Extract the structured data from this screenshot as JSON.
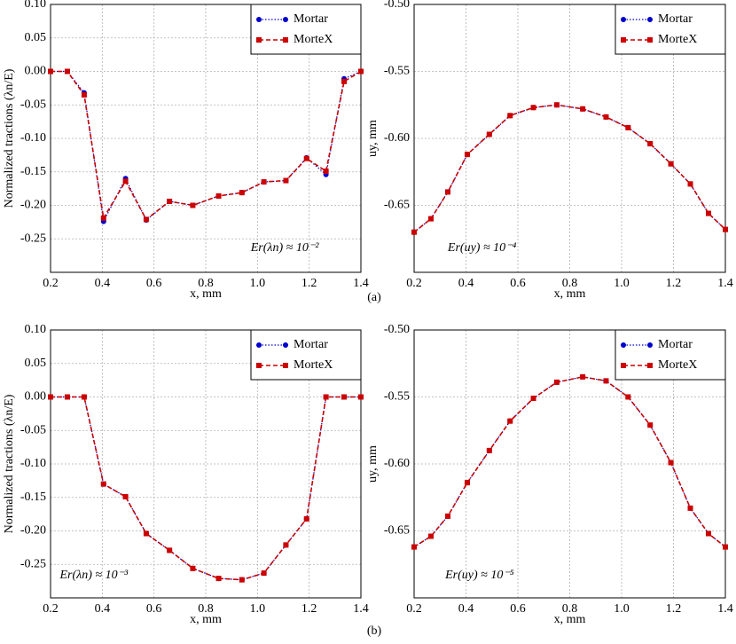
{
  "chart_data": [
    {
      "type": "line",
      "xlabel": "x, mm",
      "ylabel": "Normalized tractions (λn/E)",
      "annotation": "Er(λn) ≈ 10⁻²",
      "x": [
        0.2,
        0.265,
        0.33,
        0.405,
        0.49,
        0.57,
        0.66,
        0.75,
        0.85,
        0.94,
        1.025,
        1.11,
        1.19,
        1.265,
        1.335,
        1.4
      ],
      "series": [
        {
          "name": "Mortar",
          "color": "#0000cc",
          "values": [
            0,
            0,
            -0.032,
            -0.224,
            -0.16,
            -0.222,
            -0.194,
            -0.2,
            -0.186,
            -0.181,
            -0.165,
            -0.163,
            -0.129,
            -0.154,
            -0.011,
            0
          ]
        },
        {
          "name": "MorteX",
          "color": "#cc0000",
          "values": [
            0,
            0,
            -0.035,
            -0.219,
            -0.164,
            -0.221,
            -0.194,
            -0.2,
            -0.186,
            -0.181,
            -0.165,
            -0.163,
            -0.13,
            -0.149,
            -0.015,
            0
          ]
        }
      ],
      "xlim": [
        0.2,
        1.4
      ],
      "xticks": [
        0.2,
        0.4,
        0.6,
        0.8,
        {
          "value": 1,
          "label": "1.0"
        },
        1.2,
        1.4
      ],
      "ylim": [
        -0.3,
        0.1
      ],
      "yticks": [
        {
          "value": 0.1,
          "label": "0.10"
        },
        {
          "value": 0.05,
          "label": "0.05"
        },
        {
          "value": 0,
          "label": "0.00"
        },
        {
          "value": -0.05,
          "label": "-0.05"
        },
        {
          "value": -0.1,
          "label": "-0.10"
        },
        {
          "value": -0.15,
          "label": "-0.15"
        },
        {
          "value": -0.2,
          "label": "-0.20"
        },
        {
          "value": -0.25,
          "label": "-0.25"
        }
      ],
      "grid": true,
      "legend": "upper right"
    },
    {
      "type": "line",
      "xlabel": "x, mm",
      "ylabel": "uy, mm",
      "annotation": "Er(uy) ≈ 10⁻⁴",
      "x": [
        0.2,
        0.265,
        0.33,
        0.405,
        0.49,
        0.57,
        0.66,
        0.75,
        0.85,
        0.94,
        1.025,
        1.11,
        1.19,
        1.265,
        1.335,
        1.4
      ],
      "series": [
        {
          "name": "Mortar",
          "color": "#0000cc",
          "values": [
            -0.67,
            -0.66,
            -0.64,
            -0.612,
            -0.597,
            -0.583,
            -0.577,
            -0.575,
            -0.578,
            -0.584,
            -0.592,
            -0.604,
            -0.619,
            -0.634,
            -0.656,
            -0.668
          ]
        },
        {
          "name": "MorteX",
          "color": "#cc0000",
          "values": [
            -0.67,
            -0.66,
            -0.64,
            -0.612,
            -0.597,
            -0.583,
            -0.577,
            -0.575,
            -0.578,
            -0.584,
            -0.592,
            -0.604,
            -0.619,
            -0.634,
            -0.656,
            -0.668
          ]
        }
      ],
      "xlim": [
        0.2,
        1.4
      ],
      "xticks": [
        0.2,
        0.4,
        0.6,
        0.8,
        {
          "value": 1,
          "label": "1.0"
        },
        1.2,
        1.4
      ],
      "ylim": [
        -0.7,
        -0.5
      ],
      "yticks": [
        {
          "value": -0.5,
          "label": "-0.50"
        },
        {
          "value": -0.55,
          "label": "-0.55"
        },
        {
          "value": -0.6,
          "label": "-0.60"
        },
        {
          "value": -0.65,
          "label": "-0.65"
        }
      ],
      "grid": true,
      "legend": "upper right"
    },
    {
      "type": "line",
      "xlabel": "x, mm",
      "ylabel": "Normalized tractions (λn/E)",
      "annotation": "Er(λn) ≈ 10⁻³",
      "x": [
        0.2,
        0.265,
        0.33,
        0.405,
        0.49,
        0.57,
        0.66,
        0.75,
        0.85,
        0.94,
        1.025,
        1.11,
        1.19,
        1.265,
        1.335,
        1.4
      ],
      "series": [
        {
          "name": "Mortar",
          "color": "#0000cc",
          "values": [
            0,
            0,
            0,
            -0.13,
            -0.149,
            -0.204,
            -0.229,
            -0.256,
            -0.271,
            -0.273,
            -0.263,
            -0.221,
            -0.182,
            0,
            0,
            0
          ]
        },
        {
          "name": "MorteX",
          "color": "#cc0000",
          "values": [
            0,
            0,
            0,
            -0.13,
            -0.149,
            -0.204,
            -0.229,
            -0.256,
            -0.271,
            -0.273,
            -0.263,
            -0.221,
            -0.182,
            0,
            0,
            0
          ]
        }
      ],
      "xlim": [
        0.2,
        1.4
      ],
      "xticks": [
        0.2,
        0.4,
        0.6,
        0.8,
        {
          "value": 1,
          "label": "1.0"
        },
        1.2,
        1.4
      ],
      "ylim": [
        -0.3,
        0.1
      ],
      "yticks": [
        {
          "value": 0.1,
          "label": "0.10"
        },
        {
          "value": 0.05,
          "label": "0.05"
        },
        {
          "value": 0,
          "label": "0.00"
        },
        {
          "value": -0.05,
          "label": "-0.05"
        },
        {
          "value": -0.1,
          "label": "-0.10"
        },
        {
          "value": -0.15,
          "label": "-0.15"
        },
        {
          "value": -0.2,
          "label": "-0.20"
        },
        {
          "value": -0.25,
          "label": "-0.25"
        }
      ],
      "grid": true,
      "legend": "upper right"
    },
    {
      "type": "line",
      "xlabel": "x, mm",
      "ylabel": "uy, mm",
      "annotation": "Er(uy) ≈ 10⁻⁵",
      "x": [
        0.2,
        0.265,
        0.33,
        0.405,
        0.49,
        0.57,
        0.66,
        0.75,
        0.85,
        0.94,
        1.025,
        1.11,
        1.19,
        1.265,
        1.335,
        1.4
      ],
      "series": [
        {
          "name": "Mortar",
          "color": "#0000cc",
          "values": [
            -0.662,
            -0.654,
            -0.639,
            -0.614,
            -0.59,
            -0.568,
            -0.551,
            -0.539,
            -0.535,
            -0.538,
            -0.55,
            -0.571,
            -0.599,
            -0.633,
            -0.652,
            -0.662
          ]
        },
        {
          "name": "MorteX",
          "color": "#cc0000",
          "values": [
            -0.662,
            -0.654,
            -0.639,
            -0.614,
            -0.59,
            -0.568,
            -0.551,
            -0.539,
            -0.535,
            -0.538,
            -0.55,
            -0.571,
            -0.599,
            -0.633,
            -0.652,
            -0.662
          ]
        }
      ],
      "xlim": [
        0.2,
        1.4
      ],
      "xticks": [
        0.2,
        0.4,
        0.6,
        0.8,
        {
          "value": 1,
          "label": "1.0"
        },
        1.2,
        1.4
      ],
      "ylim": [
        -0.7,
        -0.5
      ],
      "yticks": [
        {
          "value": -0.5,
          "label": "-0.50"
        },
        {
          "value": -0.55,
          "label": "-0.55"
        },
        {
          "value": -0.6,
          "label": "-0.60"
        },
        {
          "value": -0.65,
          "label": "-0.65"
        }
      ],
      "grid": true,
      "legend": "upper right"
    }
  ],
  "panel_labels": [
    "(a)",
    "(b)"
  ]
}
